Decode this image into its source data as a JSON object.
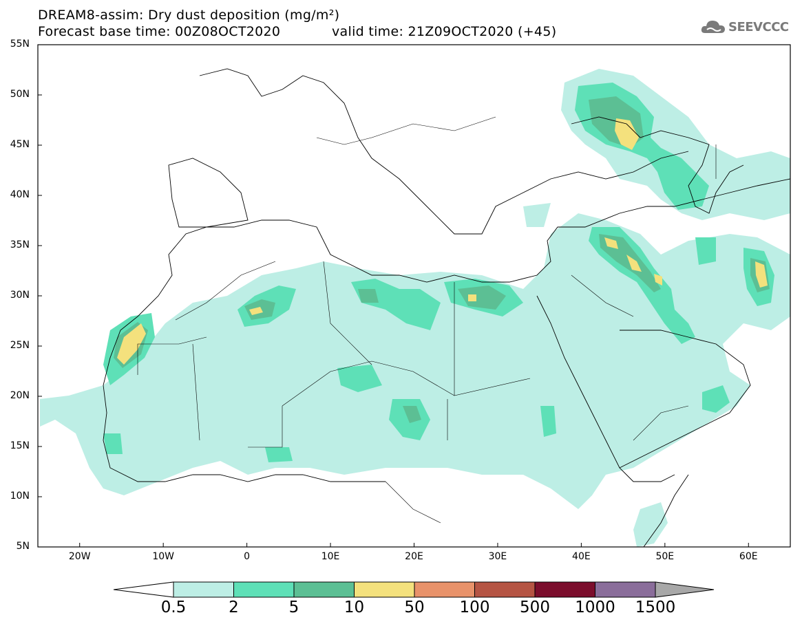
{
  "title": {
    "line1": "DREAM8-assim: Dry dust deposition (mg/m²)",
    "line2_base": "Forecast base time: 00Z08OCT2020",
    "line2_valid": "valid time: 21Z09OCT2020 (+45)"
  },
  "logo": {
    "text": "SEEVCCC",
    "icon": "cloud-icon",
    "color": "#7a7a7a"
  },
  "map": {
    "lat_labels": [
      "55N",
      "50N",
      "45N",
      "40N",
      "35N",
      "30N",
      "25N",
      "20N",
      "15N",
      "10N",
      "5N"
    ],
    "lon_labels": [
      "20W",
      "10W",
      "0",
      "10E",
      "20E",
      "30E",
      "40E",
      "50E",
      "60E"
    ],
    "lat_range": [
      5,
      55
    ],
    "lon_range": [
      -25,
      65
    ]
  },
  "colorbar": {
    "labels": [
      "0.5",
      "2",
      "5",
      "10",
      "50",
      "100",
      "500",
      "1000",
      "1500"
    ],
    "colors": [
      "#bdeee5",
      "#5ee0b7",
      "#5cbf94",
      "#f4e17d",
      "#e8926a",
      "#b55443",
      "#7b0d2c",
      "#8a6d9a",
      "#a8a8a8"
    ],
    "left_arrow_color": "#ffffff"
  }
}
